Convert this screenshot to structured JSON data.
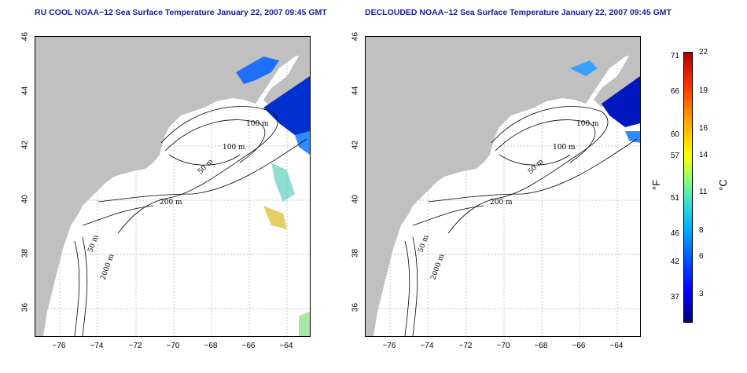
{
  "panels": [
    {
      "title": "RU COOL NOAA−12 Sea Surface Temperature January 22, 2007 09:45 GMT"
    },
    {
      "title": "DECLOUDED NOAA−12 Sea Surface Temperature January 22, 2007 09:45 GMT"
    }
  ],
  "axes": {
    "lat_ticks": [
      "46",
      "44",
      "42",
      "40",
      "38",
      "36"
    ],
    "lon_ticks": [
      "−76",
      "−74",
      "−72",
      "−70",
      "−68",
      "−66",
      "−64"
    ]
  },
  "contours": {
    "labels": [
      "100 m",
      "100 m",
      "50 m",
      "200 m",
      "50 m",
      "2000 m"
    ]
  },
  "colorbar": {
    "unit_f": "°F",
    "unit_c": "°C",
    "f_ticks": [
      "71",
      "66",
      "60",
      "57",
      "51",
      "46",
      "42",
      "37"
    ],
    "c_ticks": [
      "22",
      "19",
      "16",
      "14",
      "11",
      "8",
      "6",
      "3"
    ]
  },
  "colors": {
    "land": "#c0c0c0",
    "grid": "#b0b0b0",
    "title": "#1a1aa6"
  }
}
